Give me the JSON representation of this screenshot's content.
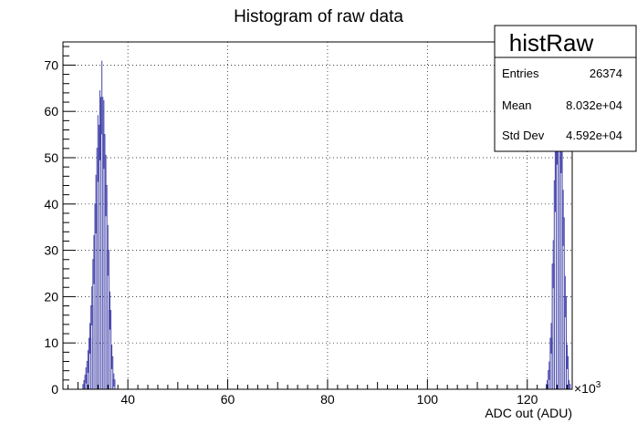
{
  "chart_data": {
    "type": "histogram",
    "title": "Histogram of raw data",
    "xlabel": "ADC out (ADU)",
    "ylabel": "",
    "x_exponent_label": "×10",
    "x_exponent_power": "3",
    "xlim": [
      27,
      129
    ],
    "ylim": [
      0,
      75
    ],
    "x_ticks": [
      40,
      60,
      80,
      100,
      120
    ],
    "y_ticks": [
      0,
      10,
      20,
      30,
      40,
      50,
      60,
      70
    ],
    "grid": true,
    "series": [
      {
        "color": "#4444aa",
        "bins": [
          {
            "x": 31.2,
            "count": 1
          },
          {
            "x": 31.6,
            "count": 3
          },
          {
            "x": 32.0,
            "count": 6
          },
          {
            "x": 32.4,
            "count": 11
          },
          {
            "x": 32.8,
            "count": 18
          },
          {
            "x": 33.2,
            "count": 28
          },
          {
            "x": 33.6,
            "count": 40
          },
          {
            "x": 34.0,
            "count": 52
          },
          {
            "x": 34.4,
            "count": 57
          },
          {
            "x": 34.8,
            "count": 63
          },
          {
            "x": 35.2,
            "count": 55
          },
          {
            "x": 35.6,
            "count": 44
          },
          {
            "x": 36.0,
            "count": 30
          },
          {
            "x": 36.4,
            "count": 17
          },
          {
            "x": 36.8,
            "count": 7
          },
          {
            "x": 37.2,
            "count": 2
          },
          {
            "x": 124.0,
            "count": 1
          },
          {
            "x": 124.4,
            "count": 4
          },
          {
            "x": 124.8,
            "count": 11
          },
          {
            "x": 125.2,
            "count": 27
          },
          {
            "x": 125.6,
            "count": 45
          },
          {
            "x": 126.0,
            "count": 56
          },
          {
            "x": 126.4,
            "count": 61
          },
          {
            "x": 126.8,
            "count": 54
          },
          {
            "x": 127.2,
            "count": 37
          },
          {
            "x": 127.6,
            "count": 20
          },
          {
            "x": 128.0,
            "count": 7
          },
          {
            "x": 128.4,
            "count": 1
          }
        ]
      }
    ],
    "bin_width": 0.4
  },
  "stats_box": {
    "name": "histRaw",
    "rows": [
      {
        "label": "Entries",
        "value": "26374"
      },
      {
        "label": "Mean",
        "value": "8.032e+04"
      },
      {
        "label": "Std Dev",
        "value": "4.592e+04"
      }
    ]
  }
}
